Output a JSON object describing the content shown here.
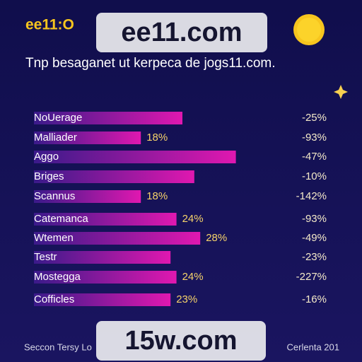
{
  "logo": "ee11:O",
  "watermark_top": "ee11.com",
  "watermark_bottom": "15w.com",
  "footer_left": "Seccon Tersy Lo",
  "footer_right": "Cerlenta 201",
  "chart_data": {
    "type": "bar",
    "orientation": "horizontal",
    "title": "Tnp besaganet ut kerpeca de jogs11.com.",
    "categories": [
      "NoUerage",
      "Malliader",
      "Aggo",
      "Briges",
      "Scannus",
      "Catemanca",
      "Wtemen",
      "Testr",
      "Mostegga",
      "Cofficles"
    ],
    "values": [
      25,
      18,
      34,
      27,
      18,
      24,
      28,
      23,
      24,
      23
    ],
    "value_labels": [
      null,
      "18%",
      null,
      null,
      "18%",
      "24%",
      "28%",
      null,
      "24%",
      "23%"
    ],
    "change_labels": [
      "-25%",
      "-93%",
      "-47%",
      "-10%",
      "-142%",
      "-93%",
      "-49%",
      "-23%",
      "-227%",
      "-16%"
    ]
  }
}
